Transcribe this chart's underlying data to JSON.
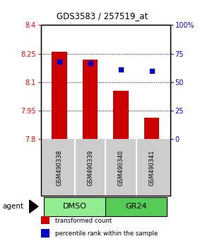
{
  "title": "GDS3583 / 257519_at",
  "samples": [
    "GSM490338",
    "GSM490339",
    "GSM490340",
    "GSM490341"
  ],
  "bar_values": [
    8.26,
    8.22,
    8.055,
    7.915
  ],
  "bar_bottom": 7.8,
  "bar_color": "#cc0000",
  "percentile_values": [
    68,
    67,
    61,
    60
  ],
  "percentile_color": "#0000cc",
  "ylim_left": [
    7.8,
    8.4
  ],
  "ylim_right": [
    0,
    100
  ],
  "yticks_left": [
    7.8,
    7.95,
    8.1,
    8.25,
    8.4
  ],
  "yticks_right": [
    0,
    25,
    50,
    75,
    100
  ],
  "ytick_labels_left": [
    "7.8",
    "7.95",
    "8.1",
    "8.25",
    "8.4"
  ],
  "ytick_labels_right": [
    "0",
    "25",
    "50",
    "75",
    "100%"
  ],
  "gridlines_at": [
    7.95,
    8.1,
    8.25
  ],
  "groups": [
    {
      "label": "DMSO",
      "samples": [
        0,
        1
      ],
      "color": "#90ee90"
    },
    {
      "label": "GR24",
      "samples": [
        2,
        3
      ],
      "color": "#55cc55"
    }
  ],
  "agent_label": "agent",
  "legend": [
    {
      "color": "#cc0000",
      "label": "transformed count"
    },
    {
      "color": "#0000cc",
      "label": "percentile rank within the sample"
    }
  ],
  "bar_width": 0.5,
  "background_color": "#ffffff"
}
